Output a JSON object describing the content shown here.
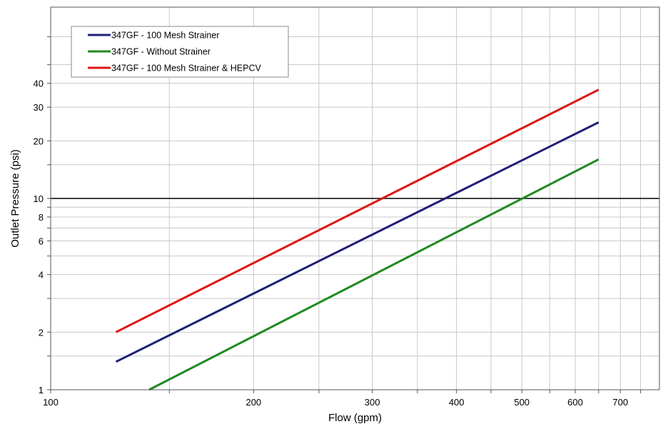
{
  "chart_data": {
    "type": "line",
    "title": "",
    "xlabel": "Flow (gpm)",
    "ylabel": "Outlet Pressure (psi)",
    "xscale": "log",
    "yscale": "log",
    "xlim": [
      100,
      800
    ],
    "ylim": [
      1,
      100
    ],
    "x_major_ticks": [
      100,
      200,
      300,
      400,
      500,
      600,
      700
    ],
    "x_minor_ticks": [
      150,
      250,
      350,
      450,
      550,
      650,
      750
    ],
    "y_tick_labels": [
      1,
      2,
      4,
      6,
      8,
      10,
      20,
      30,
      40
    ],
    "y_gridlines": [
      1,
      1.5,
      2,
      3,
      4,
      5,
      6,
      7,
      8,
      9,
      10,
      15,
      20,
      30,
      40,
      50,
      70
    ],
    "reference_line": {
      "y": 10,
      "color": "#000000"
    },
    "grid": true,
    "legend_position": "top-left",
    "series": [
      {
        "name": "347GF - 100 Mesh Strainer",
        "color": "#1f1f7a",
        "x": [
          125,
          650
        ],
        "y": [
          1.4,
          25
        ]
      },
      {
        "name": "347GF - Without Strainer",
        "color": "#1f8a1f",
        "x": [
          140,
          650
        ],
        "y": [
          1.0,
          16
        ]
      },
      {
        "name": "347GF - 100 Mesh Strainer & HEPCV",
        "color": "#e01515",
        "x": [
          125,
          650
        ],
        "y": [
          2.0,
          37
        ]
      }
    ]
  }
}
